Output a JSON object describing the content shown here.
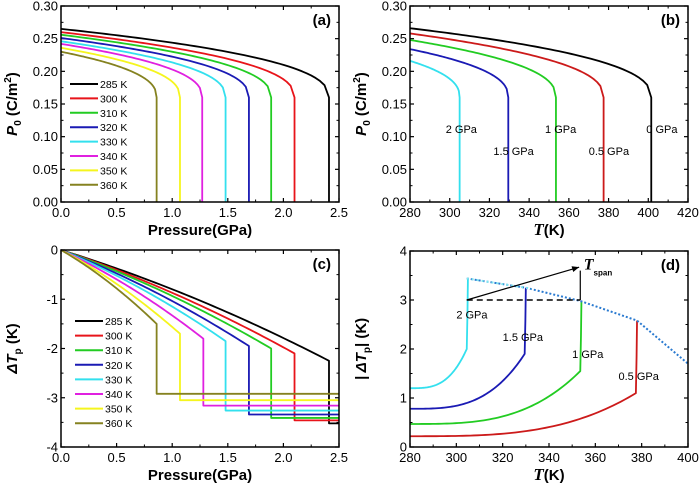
{
  "figure": {
    "colors": {
      "285 K": "#000000",
      "300 K": "#e8141a",
      "310 K": "#22cc22",
      "320 K": "#1a1ab4",
      "330 K": "#33e0ee",
      "340 K": "#e020e0",
      "350 K": "#f5f51e",
      "360 K": "#858220",
      "0 GPa": "#000000",
      "0.5 GPa": "#cc1a1a",
      "1 GPa": "#22cc22",
      "1.5 GPa": "#1a1ab4",
      "2 GPa": "#33e0ee",
      "envelope": "#2a7ad0"
    }
  },
  "chart_data": [
    {
      "id": "a",
      "type": "line",
      "panel_label": "(a)",
      "xlabel": "Pressure(GPa)",
      "ylabel": "P0 (C/m2)",
      "ylabel_parts": {
        "main": "P",
        "sub": "0",
        "unit": " (C/m",
        "sup": "2",
        "close": ")"
      },
      "xlim": [
        0,
        2.5
      ],
      "ylim": [
        0,
        0.3
      ],
      "xticks": [
        0.0,
        0.5,
        1.0,
        1.5,
        2.0,
        2.5
      ],
      "xtick_labels": [
        "0.0",
        "0.5",
        "1.0",
        "1.5",
        "2.0",
        "2.5"
      ],
      "yticks": [
        0.0,
        0.05,
        0.1,
        0.15,
        0.2,
        0.25,
        0.3
      ],
      "ytick_labels": [
        "0.00",
        "0.05",
        "0.10",
        "0.15",
        "0.20",
        "0.25",
        "0.30"
      ],
      "legend": {
        "placement": "center-left",
        "entries": [
          "285 K",
          "300 K",
          "310 K",
          "320 K",
          "330 K",
          "340 K",
          "350 K",
          "360 K"
        ]
      },
      "series": [
        {
          "name": "285 K",
          "p0_at_zero": 0.265,
          "transition_x": 2.41,
          "p_at_transition": 0.16
        },
        {
          "name": "300 K",
          "p0_at_zero": 0.26,
          "transition_x": 2.1,
          "p_at_transition": 0.16
        },
        {
          "name": "310 K",
          "p0_at_zero": 0.256,
          "transition_x": 1.89,
          "p_at_transition": 0.16
        },
        {
          "name": "320 K",
          "p0_at_zero": 0.251,
          "transition_x": 1.69,
          "p_at_transition": 0.16
        },
        {
          "name": "330 K",
          "p0_at_zero": 0.246,
          "transition_x": 1.48,
          "p_at_transition": 0.16
        },
        {
          "name": "340 K",
          "p0_at_zero": 0.242,
          "transition_x": 1.27,
          "p_at_transition": 0.16
        },
        {
          "name": "350 K",
          "p0_at_zero": 0.236,
          "transition_x": 1.07,
          "p_at_transition": 0.16
        },
        {
          "name": "360 K",
          "p0_at_zero": 0.23,
          "transition_x": 0.86,
          "p_at_transition": 0.16
        }
      ]
    },
    {
      "id": "b",
      "type": "line",
      "panel_label": "(b)",
      "xlabel": "T(K)",
      "ylabel": "P0 (C/m2)",
      "ylabel_parts": {
        "main": "P",
        "sub": "0",
        "unit": " (C/m",
        "sup": "2",
        "close": ")"
      },
      "xlim": [
        280,
        420
      ],
      "ylim": [
        0,
        0.3
      ],
      "xticks": [
        280,
        300,
        320,
        340,
        360,
        380,
        400,
        420
      ],
      "xtick_labels": [
        "280",
        "300",
        "320",
        "340",
        "360",
        "380",
        "400",
        "420"
      ],
      "yticks": [
        0.0,
        0.05,
        0.1,
        0.15,
        0.2,
        0.25,
        0.3
      ],
      "ytick_labels": [
        "0.00",
        "0.05",
        "0.10",
        "0.15",
        "0.20",
        "0.25",
        "0.30"
      ],
      "series": [
        {
          "name": "0 GPa",
          "label": "0 GPa",
          "p0_at_280": 0.266,
          "transition_x": 401.5,
          "p_at_transition": 0.16,
          "label_pos": [
            399,
            0.112
          ]
        },
        {
          "name": "0.5 GPa",
          "label": "0.5 GPa",
          "p0_at_280": 0.258,
          "transition_x": 377.5,
          "p_at_transition": 0.16,
          "label_pos": [
            370,
            0.078
          ]
        },
        {
          "name": "1 GPa",
          "label": "1 GPa",
          "p0_at_280": 0.248,
          "transition_x": 353.5,
          "p_at_transition": 0.16,
          "label_pos": [
            348,
            0.112
          ]
        },
        {
          "name": "1.5 GPa",
          "label": "1.5 GPa",
          "p0_at_280": 0.234,
          "transition_x": 329.5,
          "p_at_transition": 0.16,
          "label_pos": [
            322,
            0.078
          ]
        },
        {
          "name": "2 GPa",
          "label": "2 GPa",
          "p0_at_280": 0.216,
          "transition_x": 305,
          "p_at_transition": 0.16,
          "label_pos": [
            298,
            0.112
          ]
        }
      ]
    },
    {
      "id": "c",
      "type": "line",
      "panel_label": "(c)",
      "xlabel": "Pressure(GPa)",
      "ylabel": "ΔTp (K)",
      "ylabel_parts": {
        "main": "ΔT",
        "sub": "p",
        "unit": " (K)"
      },
      "xlim": [
        0,
        2.5
      ],
      "ylim": [
        -4,
        0
      ],
      "xticks": [
        0.0,
        0.5,
        1.0,
        1.5,
        2.0,
        2.5
      ],
      "xtick_labels": [
        "0.0",
        "0.5",
        "1.0",
        "1.5",
        "2.0",
        "2.5"
      ],
      "yticks": [
        -4,
        -3,
        -2,
        -1,
        0
      ],
      "ytick_labels": [
        "-4",
        "-3",
        "-2",
        "-1",
        "0"
      ],
      "legend": {
        "placement": "center-left",
        "entries": [
          "285 K",
          "300 K",
          "310 K",
          "320 K",
          "330 K",
          "340 K",
          "350 K",
          "360 K"
        ]
      },
      "series": [
        {
          "name": "285 K",
          "transition_x": 2.41,
          "dt_before": -2.25,
          "dt_after": -3.52
        },
        {
          "name": "300 K",
          "transition_x": 2.1,
          "dt_before": -2.1,
          "dt_after": -3.46
        },
        {
          "name": "310 K",
          "transition_x": 1.89,
          "dt_before": -2.0,
          "dt_after": -3.41
        },
        {
          "name": "320 K",
          "transition_x": 1.69,
          "dt_before": -1.95,
          "dt_after": -3.34
        },
        {
          "name": "330 K",
          "transition_x": 1.48,
          "dt_before": -1.85,
          "dt_after": -3.26
        },
        {
          "name": "340 K",
          "transition_x": 1.28,
          "dt_before": -1.8,
          "dt_after": -3.16
        },
        {
          "name": "350 K",
          "transition_x": 1.07,
          "dt_before": -1.7,
          "dt_after": -3.05
        },
        {
          "name": "360 K",
          "transition_x": 0.86,
          "dt_before": -1.5,
          "dt_after": -2.92
        }
      ]
    },
    {
      "id": "d",
      "type": "line",
      "panel_label": "(d)",
      "xlabel": "T(K)",
      "ylabel": "|ΔTp| (K)",
      "ylabel_parts": {
        "main": "| ΔT",
        "sub": "p",
        "unit": "| (K)"
      },
      "xlim": [
        280,
        400
      ],
      "ylim": [
        0,
        4
      ],
      "xticks": [
        280,
        300,
        320,
        340,
        360,
        380,
        400
      ],
      "xtick_labels": [
        "280",
        "300",
        "320",
        "340",
        "360",
        "380",
        "400"
      ],
      "yticks": [
        0,
        1,
        2,
        3,
        4
      ],
      "ytick_labels": [
        "0",
        "1",
        "2",
        "3",
        "4"
      ],
      "series": [
        {
          "name": "0.5 GPa",
          "label": "0.5 GPa",
          "dt_at_280": 0.22,
          "transition_x": 377.5,
          "dt_before": 1.1,
          "dt_peak": 2.58,
          "label_pos": [
            370,
            1.45
          ]
        },
        {
          "name": "1 GPa",
          "label": "1 GPa",
          "dt_at_280": 0.47,
          "transition_x": 353.5,
          "dt_before": 1.55,
          "dt_peak": 2.98,
          "label_pos": [
            350,
            1.9
          ]
        },
        {
          "name": "1.5 GPa",
          "label": "1.5 GPa",
          "dt_at_280": 0.78,
          "transition_x": 329.5,
          "dt_before": 1.9,
          "dt_peak": 3.25,
          "label_pos": [
            320,
            2.25
          ]
        },
        {
          "name": "2 GPa",
          "label": "2 GPa",
          "dt_at_280": 1.2,
          "transition_x": 304.5,
          "dt_before": 2.0,
          "dt_peak": 3.44,
          "label_pos": [
            300,
            2.7
          ]
        }
      ],
      "envelope": {
        "x": [
          304.5,
          330,
          353.5,
          378,
          400
        ],
        "y": [
          3.44,
          3.25,
          2.98,
          2.58,
          1.7
        ]
      },
      "annotation": {
        "label": "T",
        "sub": "span",
        "dashed_line": {
          "x": [
            304.5,
            353.5
          ],
          "y": 3.0
        },
        "vertical_line": {
          "x": 353.5,
          "y": [
            3.0,
            3.6
          ]
        },
        "arrow": {
          "from": [
            304.5,
            3.0
          ],
          "to": [
            353,
            3.67
          ]
        },
        "label_pos": [
          355,
          3.62
        ]
      }
    }
  ]
}
